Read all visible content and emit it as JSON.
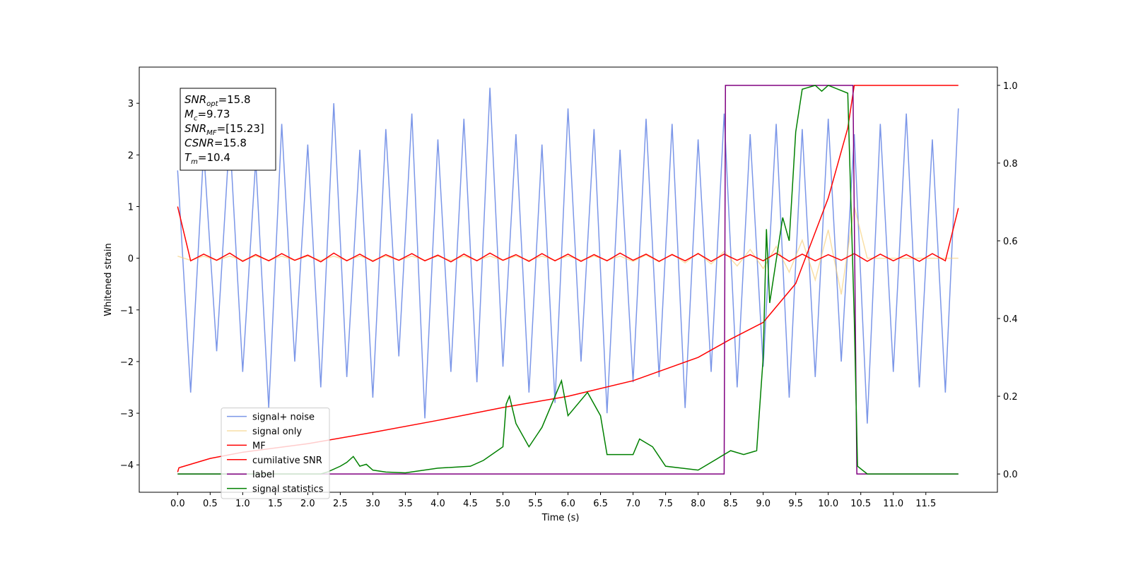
{
  "chart_data": {
    "type": "line",
    "xlabel": "Time (s)",
    "ylabel": "Whitened strain",
    "xlim": [
      -0.59,
      12.6
    ],
    "ylim": [
      -4.53,
      3.7
    ],
    "y2lim": [
      -0.047,
      1.047
    ],
    "xticks": [
      {
        "value": 0,
        "label": "0.0"
      },
      0.5,
      {
        "value": 1,
        "label": "1.0"
      },
      1.5,
      {
        "value": 2,
        "label": "2.0"
      },
      2.5,
      {
        "value": 3,
        "label": "3.0"
      },
      3.5,
      {
        "value": 4,
        "label": "4.0"
      },
      4.5,
      {
        "value": 5,
        "label": "5.0"
      },
      5.5,
      {
        "value": 6,
        "label": "6.0"
      },
      6.5,
      {
        "value": 7,
        "label": "7.0"
      },
      7.5,
      {
        "value": 8,
        "label": "8.0"
      },
      8.5,
      {
        "value": 9,
        "label": "9.0"
      },
      9.5,
      {
        "value": 10,
        "label": "10.0"
      },
      10.5,
      {
        "value": 11,
        "label": "11.0"
      },
      11.5
    ],
    "yticks": [
      {
        "value": -4,
        "label": "−4"
      },
      {
        "value": -3,
        "label": "−3"
      },
      {
        "value": -2,
        "label": "−2"
      },
      {
        "value": -1,
        "label": "−1"
      },
      0,
      1,
      2,
      3
    ],
    "y2ticks": [
      {
        "value": 0,
        "label": "0.0"
      },
      0.2,
      0.4,
      0.6,
      0.8,
      {
        "value": 1,
        "label": "1.0"
      }
    ],
    "legend": "lower left",
    "annotations": [
      {
        "symbol": "SNR",
        "sub": "opt",
        "text": "=15.8"
      },
      {
        "symbol": "M",
        "sub": "c",
        "text": "=9.73"
      },
      {
        "symbol": "SNR",
        "sub": "MF",
        "text": "=[15.23]"
      },
      {
        "symbol": "CSNR",
        "sub": "",
        "text": "=15.8"
      },
      {
        "symbol": "T",
        "sub": "m",
        "text": "=10.4"
      }
    ],
    "x": [
      0,
      0.2,
      0.4,
      0.6,
      0.8,
      1.0,
      1.2,
      1.4,
      1.6,
      1.8,
      2.0,
      2.2,
      2.4,
      2.6,
      2.8,
      3.0,
      3.2,
      3.4,
      3.6,
      3.8,
      4.0,
      4.2,
      4.4,
      4.6,
      4.8,
      5.0,
      5.2,
      5.4,
      5.6,
      5.8,
      6.0,
      6.2,
      6.4,
      6.6,
      6.8,
      7.0,
      7.2,
      7.4,
      7.6,
      7.8,
      8.0,
      8.2,
      8.4,
      8.6,
      8.8,
      9.0,
      9.2,
      9.4,
      9.6,
      9.8,
      10.0,
      10.2,
      10.4,
      10.6,
      10.8,
      11.0,
      11.2,
      11.4,
      11.6,
      11.8,
      12.0
    ],
    "series": [
      {
        "name": "signal+ noise",
        "color": "#7b96e8",
        "axis": "y",
        "values": [
          1.7,
          -2.6,
          2.1,
          -1.8,
          2.4,
          -2.2,
          1.9,
          -2.9,
          2.6,
          -2.0,
          2.2,
          -2.5,
          3.0,
          -2.3,
          2.1,
          -2.7,
          2.5,
          -1.9,
          2.8,
          -3.1,
          2.3,
          -2.2,
          2.7,
          -2.4,
          3.3,
          -2.1,
          2.4,
          -2.6,
          2.2,
          -2.8,
          2.9,
          -2.0,
          2.5,
          -3.0,
          2.1,
          -2.4,
          2.7,
          -2.3,
          2.6,
          -2.9,
          2.3,
          -2.2,
          2.8,
          -2.5,
          2.4,
          -2.1,
          2.6,
          -2.7,
          2.5,
          -2.3,
          2.7,
          -2.0,
          2.4,
          -3.2,
          2.6,
          -2.2,
          2.8,
          -2.5,
          2.3,
          -2.6,
          2.9
        ]
      },
      {
        "name": "signal only",
        "color": "#f5c96b",
        "axis": "y",
        "values": [
          0.04,
          -0.04,
          0.04,
          -0.04,
          0.04,
          -0.04,
          0.04,
          -0.04,
          0.04,
          -0.04,
          0.04,
          -0.04,
          0.04,
          -0.04,
          0.04,
          -0.04,
          0.04,
          -0.04,
          0.04,
          -0.04,
          0.04,
          -0.04,
          0.04,
          -0.04,
          0.04,
          -0.04,
          0.04,
          -0.04,
          0.04,
          -0.04,
          0.04,
          -0.04,
          0.04,
          -0.04,
          0.04,
          -0.06,
          0.06,
          -0.07,
          0.08,
          -0.09,
          0.1,
          -0.11,
          0.13,
          -0.15,
          0.17,
          -0.2,
          0.23,
          -0.27,
          0.35,
          -0.42,
          0.55,
          -0.7,
          1.0,
          0,
          0,
          0,
          0,
          0,
          0,
          0,
          0
        ]
      },
      {
        "name": "MF",
        "color": "#ff0000",
        "axis": "y",
        "values": [
          1.0,
          -0.05,
          0.08,
          -0.04,
          0.1,
          -0.06,
          0.07,
          -0.05,
          0.09,
          -0.04,
          0.06,
          -0.07,
          0.1,
          -0.05,
          0.08,
          -0.06,
          0.07,
          -0.04,
          0.09,
          -0.05,
          0.06,
          -0.07,
          0.08,
          -0.05,
          0.1,
          -0.04,
          0.07,
          -0.06,
          0.09,
          -0.05,
          0.08,
          -0.06,
          0.07,
          -0.05,
          0.1,
          -0.04,
          0.08,
          -0.06,
          0.07,
          -0.05,
          0.09,
          -0.06,
          0.08,
          -0.04,
          0.07,
          -0.05,
          0.1,
          -0.06,
          0.08,
          -0.05,
          0.07,
          -0.04,
          0.09,
          -0.06,
          0.08,
          -0.05,
          0.07,
          -0.06,
          0.09,
          -0.05,
          0.97
        ]
      },
      {
        "name": "cumilative SNR",
        "color": "#ff0000",
        "axis": "y2",
        "x": [
          0,
          0.02,
          0.5,
          1.0,
          2.0,
          3.0,
          4.0,
          5.0,
          6.0,
          7.0,
          7.5,
          8.0,
          8.5,
          9.0,
          9.5,
          10.0,
          10.3,
          10.4,
          12.0
        ],
        "values": [
          0.005,
          0.016,
          0.04,
          0.056,
          0.078,
          0.107,
          0.138,
          0.171,
          0.2,
          0.24,
          0.27,
          0.3,
          0.347,
          0.39,
          0.49,
          0.71,
          0.89,
          1.0,
          1.0
        ]
      },
      {
        "name": "label",
        "color": "#800080",
        "axis": "y2",
        "x": [
          0,
          8.4,
          8.42,
          10.38,
          10.44,
          12.0
        ],
        "values": [
          0,
          0,
          1,
          1,
          0,
          0
        ]
      },
      {
        "name": "signal statistics",
        "color": "#008000",
        "axis": "y2",
        "x": [
          0,
          2.2,
          2.3,
          2.5,
          2.6,
          2.7,
          2.8,
          2.9,
          3.0,
          3.2,
          3.5,
          4.0,
          4.5,
          4.7,
          5.0,
          5.05,
          5.1,
          5.2,
          5.4,
          5.6,
          5.9,
          6.0,
          6.3,
          6.5,
          6.6,
          7.0,
          7.1,
          7.3,
          7.5,
          8.0,
          8.5,
          8.7,
          8.9,
          9.0,
          9.05,
          9.1,
          9.3,
          9.4,
          9.5,
          9.6,
          9.8,
          9.9,
          10.0,
          10.3,
          10.4,
          10.45,
          10.6,
          12.0
        ],
        "values": [
          0,
          0,
          0.005,
          0.02,
          0.03,
          0.045,
          0.02,
          0.025,
          0.01,
          0.005,
          0.003,
          0.015,
          0.02,
          0.035,
          0.07,
          0.18,
          0.2,
          0.13,
          0.07,
          0.12,
          0.24,
          0.15,
          0.21,
          0.15,
          0.05,
          0.05,
          0.09,
          0.07,
          0.02,
          0.01,
          0.06,
          0.05,
          0.06,
          0.3,
          0.63,
          0.44,
          0.66,
          0.6,
          0.88,
          0.99,
          1.0,
          0.985,
          1.0,
          0.98,
          0.4,
          0.02,
          0,
          0
        ]
      }
    ]
  }
}
